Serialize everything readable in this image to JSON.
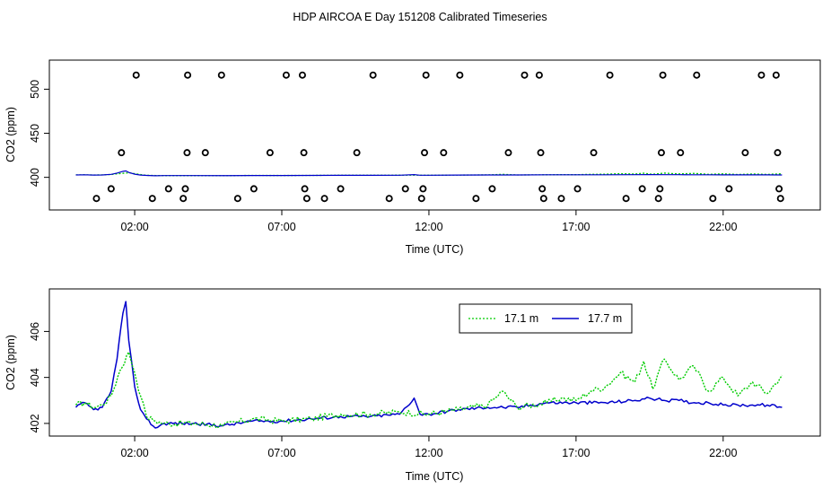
{
  "title": "HDP AIRCOA E  Day 151208  Calibrated Timeseries",
  "chart_data": [
    {
      "type": "scatter",
      "xlabel": "Time (UTC)",
      "ylabel": "CO2 (ppm)",
      "xticks": [
        "02:00",
        "07:00",
        "12:00",
        "17:00",
        "22:00"
      ],
      "xtick_hours": [
        2,
        7,
        12,
        17,
        22
      ],
      "yticks": [
        400,
        450,
        500
      ],
      "xlim": [
        -0.9,
        25.3
      ],
      "ylim": [
        363,
        533
      ],
      "calibration_points": [
        {
          "x": 0.7,
          "y": 376
        },
        {
          "x": 1.2,
          "y": 387
        },
        {
          "x": 1.55,
          "y": 428
        },
        {
          "x": 2.05,
          "y": 516
        },
        {
          "x": 2.6,
          "y": 376
        },
        {
          "x": 3.15,
          "y": 387
        },
        {
          "x": 3.65,
          "y": 376
        },
        {
          "x": 3.72,
          "y": 387
        },
        {
          "x": 3.78,
          "y": 428
        },
        {
          "x": 3.8,
          "y": 516
        },
        {
          "x": 4.4,
          "y": 428
        },
        {
          "x": 4.95,
          "y": 516
        },
        {
          "x": 5.5,
          "y": 376
        },
        {
          "x": 6.05,
          "y": 387
        },
        {
          "x": 6.6,
          "y": 428
        },
        {
          "x": 7.15,
          "y": 516
        },
        {
          "x": 7.7,
          "y": 516
        },
        {
          "x": 7.75,
          "y": 428
        },
        {
          "x": 7.78,
          "y": 387
        },
        {
          "x": 7.85,
          "y": 376
        },
        {
          "x": 8.45,
          "y": 376
        },
        {
          "x": 9.0,
          "y": 387
        },
        {
          "x": 9.55,
          "y": 428
        },
        {
          "x": 10.1,
          "y": 516
        },
        {
          "x": 10.65,
          "y": 376
        },
        {
          "x": 11.2,
          "y": 387
        },
        {
          "x": 11.75,
          "y": 376
        },
        {
          "x": 11.8,
          "y": 387
        },
        {
          "x": 11.85,
          "y": 428
        },
        {
          "x": 11.9,
          "y": 516
        },
        {
          "x": 12.5,
          "y": 428
        },
        {
          "x": 13.05,
          "y": 516
        },
        {
          "x": 13.6,
          "y": 376
        },
        {
          "x": 14.15,
          "y": 387
        },
        {
          "x": 14.7,
          "y": 428
        },
        {
          "x": 15.25,
          "y": 516
        },
        {
          "x": 15.75,
          "y": 516
        },
        {
          "x": 15.8,
          "y": 428
        },
        {
          "x": 15.85,
          "y": 387
        },
        {
          "x": 15.9,
          "y": 376
        },
        {
          "x": 16.5,
          "y": 376
        },
        {
          "x": 17.05,
          "y": 387
        },
        {
          "x": 17.6,
          "y": 428
        },
        {
          "x": 18.15,
          "y": 516
        },
        {
          "x": 18.7,
          "y": 376
        },
        {
          "x": 19.25,
          "y": 387
        },
        {
          "x": 19.8,
          "y": 376
        },
        {
          "x": 19.85,
          "y": 387
        },
        {
          "x": 19.9,
          "y": 428
        },
        {
          "x": 19.95,
          "y": 516
        },
        {
          "x": 20.55,
          "y": 428
        },
        {
          "x": 21.1,
          "y": 516
        },
        {
          "x": 21.65,
          "y": 376
        },
        {
          "x": 22.2,
          "y": 387
        },
        {
          "x": 22.75,
          "y": 428
        },
        {
          "x": 23.3,
          "y": 516
        },
        {
          "x": 23.8,
          "y": 516
        },
        {
          "x": 23.85,
          "y": 428
        },
        {
          "x": 23.9,
          "y": 387
        },
        {
          "x": 23.95,
          "y": 376
        }
      ],
      "line_value": 403
    },
    {
      "type": "line",
      "xlabel": "Time (UTC)",
      "ylabel": "CO2 (ppm)",
      "xticks": [
        "02:00",
        "12:00",
        "17:00",
        "22:00"
      ],
      "xtick_hours": [
        2,
        12,
        17,
        22
      ],
      "xticks_all": [
        "02:00",
        "07:00",
        "12:00",
        "17:00",
        "22:00"
      ],
      "xtick_hours_all": [
        2,
        7,
        12,
        17,
        22
      ],
      "yticks": [
        402,
        404,
        406
      ],
      "xlim": [
        -0.9,
        25.3
      ],
      "ylim": [
        401.45,
        407.85
      ],
      "legend_position": "top-right",
      "series": [
        {
          "name": "17.1 m",
          "color": "#00cc00",
          "dashed": true,
          "x": [
            0,
            0.3,
            0.6,
            0.9,
            1.2,
            1.5,
            1.8,
            2.0,
            2.2,
            2.4,
            2.7,
            3.0,
            4.0,
            5.0,
            6.0,
            7.0,
            8.0,
            9.0,
            10.0,
            11.0,
            12.0,
            13.0,
            14.0,
            14.5,
            15.0,
            16.0,
            16.5,
            17.0,
            17.5,
            18.0,
            18.5,
            19.0,
            19.3,
            19.6,
            20.0,
            20.5,
            21.0,
            21.5,
            22.0,
            22.5,
            23.0,
            23.5,
            24.0
          ],
          "y": [
            402.8,
            402.9,
            402.7,
            402.8,
            403.2,
            404.3,
            405.1,
            404.2,
            403.2,
            402.3,
            402.1,
            402.0,
            402.0,
            401.9,
            402.2,
            402.1,
            402.2,
            402.4,
            402.4,
            402.5,
            402.4,
            402.6,
            402.8,
            403.4,
            402.7,
            402.9,
            403.1,
            403.0,
            403.4,
            403.6,
            404.2,
            403.8,
            404.7,
            403.5,
            404.8,
            403.9,
            404.5,
            403.4,
            404.0,
            403.2,
            403.8,
            403.3,
            404.1
          ]
        },
        {
          "name": "17.7 m",
          "color": "#0000cc",
          "dashed": false,
          "x": [
            0,
            0.3,
            0.6,
            0.9,
            1.2,
            1.4,
            1.6,
            1.7,
            1.8,
            2.0,
            2.2,
            2.4,
            2.7,
            3.0,
            4.0,
            5.0,
            6.0,
            7.0,
            8.0,
            9.0,
            10.0,
            11.0,
            11.5,
            11.7,
            12.0,
            13.0,
            14.0,
            15.0,
            16.0,
            17.0,
            18.0,
            19.0,
            19.5,
            20.0,
            20.5,
            21.0,
            21.5,
            22.0,
            22.5,
            23.0,
            23.5,
            24.0
          ],
          "y": [
            402.7,
            402.9,
            402.6,
            402.7,
            403.4,
            404.8,
            406.8,
            407.3,
            405.6,
            403.6,
            402.6,
            402.2,
            401.8,
            402.0,
            402.0,
            401.9,
            402.1,
            402.1,
            402.2,
            402.3,
            402.3,
            402.4,
            403.1,
            402.4,
            402.4,
            402.6,
            402.7,
            402.7,
            402.9,
            402.9,
            402.9,
            403.0,
            403.1,
            403.0,
            403.0,
            402.9,
            402.9,
            402.8,
            402.8,
            402.8,
            402.8,
            402.7
          ]
        }
      ]
    }
  ]
}
